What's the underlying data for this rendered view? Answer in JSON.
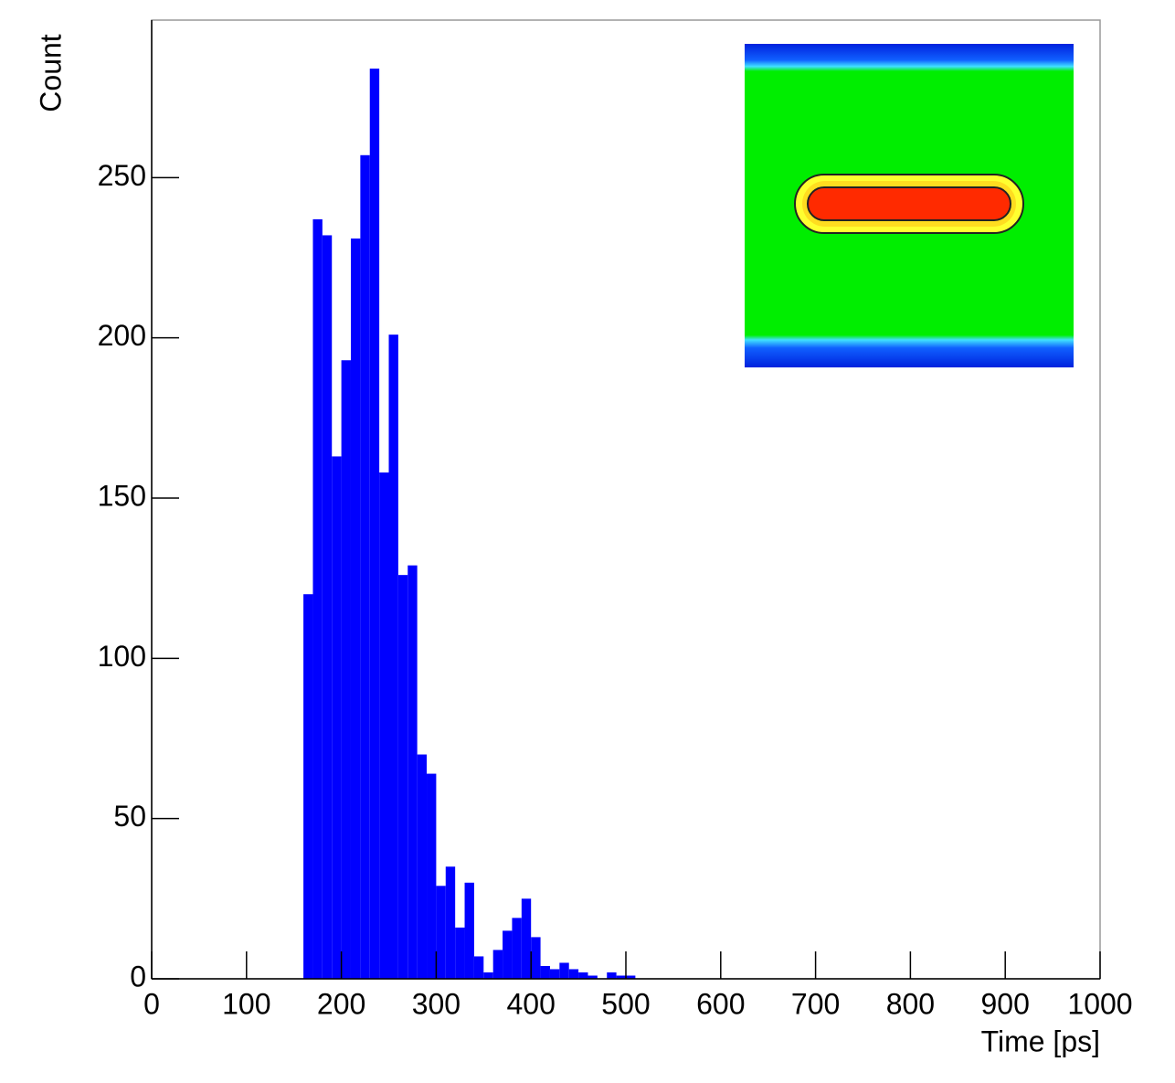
{
  "chart_data": {
    "type": "histogram",
    "x_label": "Time [ps]",
    "y_label": "Count",
    "bins": [
      160,
      170,
      180,
      190,
      200,
      210,
      220,
      230,
      240,
      250,
      260,
      270,
      280,
      290,
      300,
      310,
      320,
      330,
      340,
      350,
      360,
      370,
      380,
      390,
      400,
      410,
      420,
      430,
      440,
      450,
      460,
      470,
      480,
      490,
      500,
      510
    ],
    "counts": [
      120,
      237,
      232,
      163,
      193,
      231,
      257,
      284,
      158,
      201,
      126,
      129,
      70,
      64,
      29,
      35,
      16,
      30,
      7,
      2,
      9,
      15,
      19,
      25,
      13,
      4,
      3,
      5,
      3,
      2,
      1,
      0,
      2,
      1,
      1
    ],
    "color": "#0000ff",
    "xlim": [
      0,
      1000
    ],
    "xticks": [
      0,
      100,
      200,
      300,
      400,
      500,
      600,
      700,
      800,
      900,
      1000
    ],
    "ylim": [
      0,
      300
    ],
    "yticks": [
      0,
      50,
      100,
      150,
      200,
      250
    ]
  }
}
